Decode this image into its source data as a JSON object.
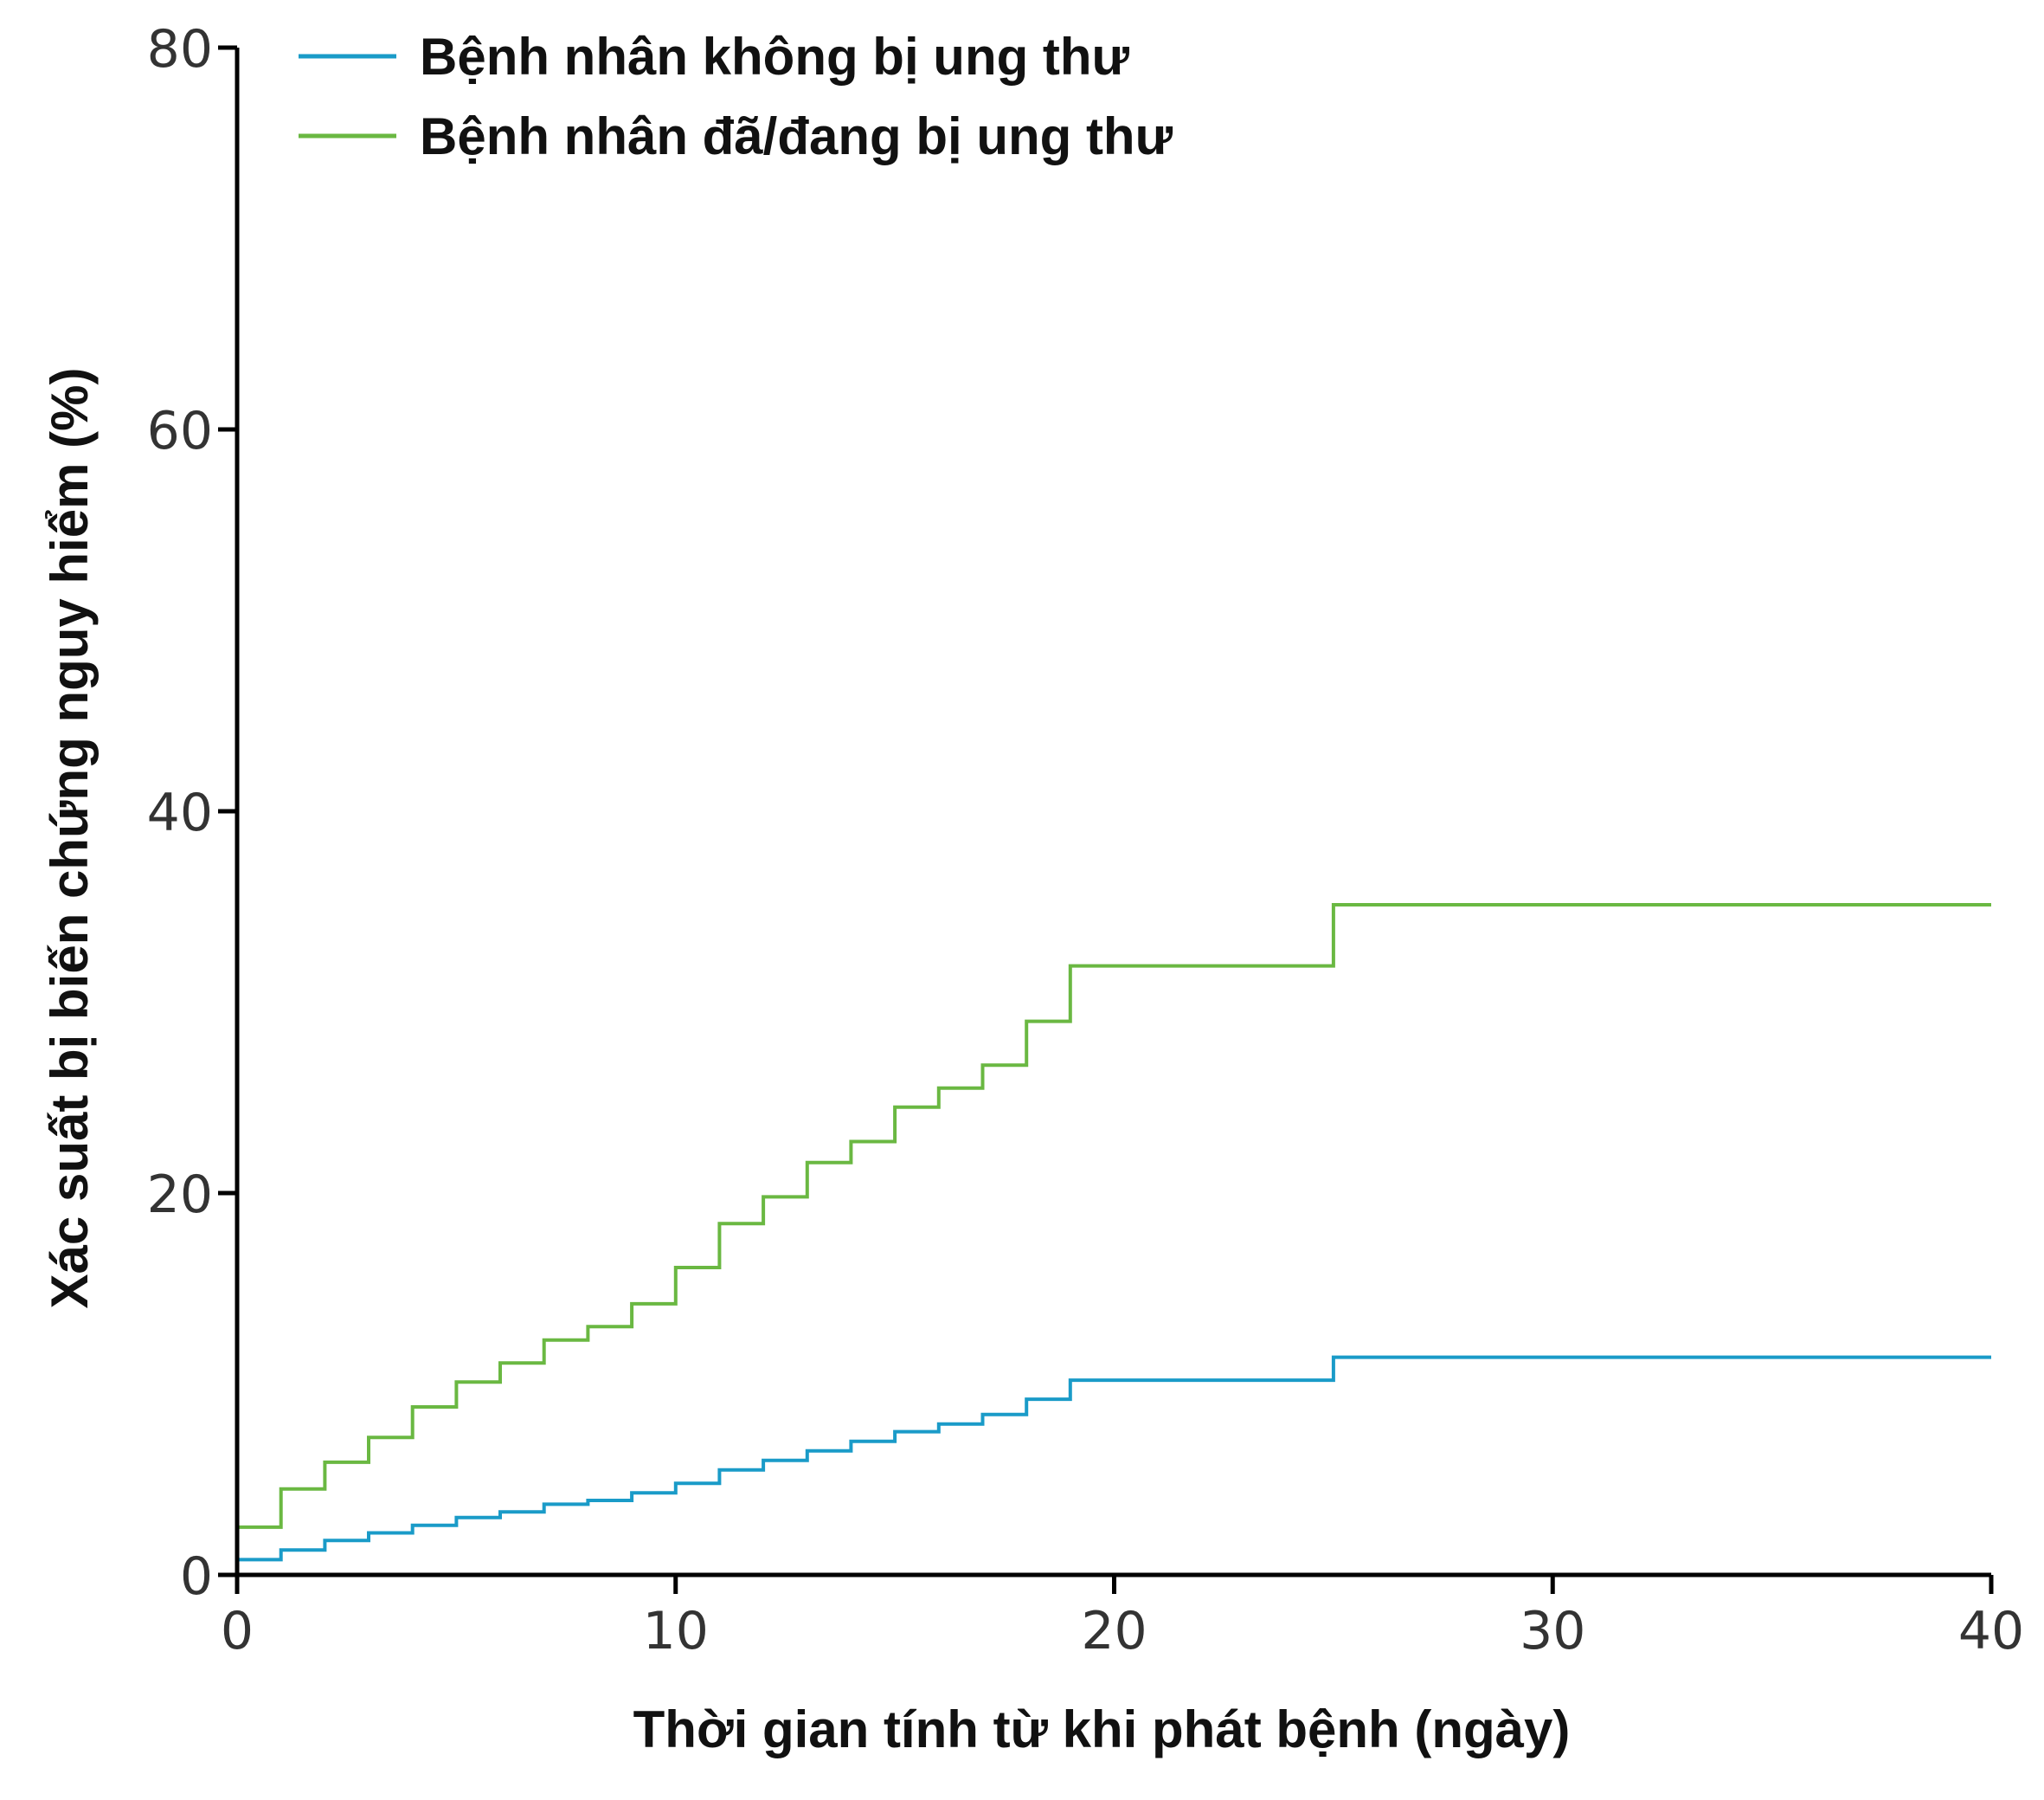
{
  "chart_data": {
    "type": "line",
    "step": true,
    "title": "",
    "xlabel": "Thời gian tính từ khi phát bệnh (ngày)",
    "ylabel": "Xác suất bị biến chứng nguy hiểm (%)",
    "xlim": [
      0,
      40
    ],
    "ylim": [
      0,
      80
    ],
    "xticks": [
      0,
      10,
      20,
      30,
      40
    ],
    "yticks": [
      0,
      20,
      40,
      60,
      80
    ],
    "xtick_labels": [
      "0",
      "10",
      "20",
      "30",
      "40"
    ],
    "ytick_labels": [
      "0",
      "20",
      "40",
      "60",
      "80"
    ],
    "grid": false,
    "legend_position": "top-left",
    "series": [
      {
        "name": "Bệnh nhân không bị ung thư",
        "color": "#1a9bc8",
        "points": [
          [
            0,
            0
          ],
          [
            0,
            0.8
          ],
          [
            1,
            0.8
          ],
          [
            1,
            1.3
          ],
          [
            2,
            1.3
          ],
          [
            2,
            1.8
          ],
          [
            3,
            1.8
          ],
          [
            3,
            2.2
          ],
          [
            4,
            2.2
          ],
          [
            4,
            2.6
          ],
          [
            5,
            2.6
          ],
          [
            5,
            3.0
          ],
          [
            6,
            3.0
          ],
          [
            6,
            3.3
          ],
          [
            7,
            3.3
          ],
          [
            7,
            3.7
          ],
          [
            8,
            3.7
          ],
          [
            8,
            3.9
          ],
          [
            9,
            3.9
          ],
          [
            9,
            4.3
          ],
          [
            10,
            4.3
          ],
          [
            10,
            4.8
          ],
          [
            11,
            4.8
          ],
          [
            11,
            5.5
          ],
          [
            12,
            5.5
          ],
          [
            12,
            6.0
          ],
          [
            13,
            6.0
          ],
          [
            13,
            6.5
          ],
          [
            14,
            6.5
          ],
          [
            14,
            7.0
          ],
          [
            15,
            7.0
          ],
          [
            15,
            7.5
          ],
          [
            16,
            7.5
          ],
          [
            16,
            7.9
          ],
          [
            17,
            7.9
          ],
          [
            17,
            8.4
          ],
          [
            18,
            8.4
          ],
          [
            18,
            9.2
          ],
          [
            19,
            9.2
          ],
          [
            19,
            10.2
          ],
          [
            25,
            10.2
          ],
          [
            25,
            11.4
          ],
          [
            40,
            11.4
          ]
        ]
      },
      {
        "name": "Bệnh nhân đã/đang bị ung thư",
        "color": "#6ab842",
        "points": [
          [
            0,
            0
          ],
          [
            0,
            2.5
          ],
          [
            1,
            2.5
          ],
          [
            1,
            4.5
          ],
          [
            2,
            4.5
          ],
          [
            2,
            5.9
          ],
          [
            3,
            5.9
          ],
          [
            3,
            7.2
          ],
          [
            4,
            7.2
          ],
          [
            4,
            8.8
          ],
          [
            5,
            8.8
          ],
          [
            5,
            10.1
          ],
          [
            6,
            10.1
          ],
          [
            6,
            11.1
          ],
          [
            7,
            11.1
          ],
          [
            7,
            12.3
          ],
          [
            8,
            12.3
          ],
          [
            8,
            13.0
          ],
          [
            9,
            13.0
          ],
          [
            9,
            14.2
          ],
          [
            10,
            14.2
          ],
          [
            10,
            16.1
          ],
          [
            11,
            16.1
          ],
          [
            11,
            18.4
          ],
          [
            12,
            18.4
          ],
          [
            12,
            19.8
          ],
          [
            13,
            19.8
          ],
          [
            13,
            21.6
          ],
          [
            14,
            21.6
          ],
          [
            14,
            22.7
          ],
          [
            15,
            22.7
          ],
          [
            15,
            24.5
          ],
          [
            16,
            24.5
          ],
          [
            16,
            25.5
          ],
          [
            17,
            25.5
          ],
          [
            17,
            26.7
          ],
          [
            18,
            26.7
          ],
          [
            18,
            29.0
          ],
          [
            19,
            29.0
          ],
          [
            19,
            31.9
          ],
          [
            25,
            31.9
          ],
          [
            25,
            35.1
          ],
          [
            40,
            35.1
          ]
        ]
      }
    ]
  }
}
